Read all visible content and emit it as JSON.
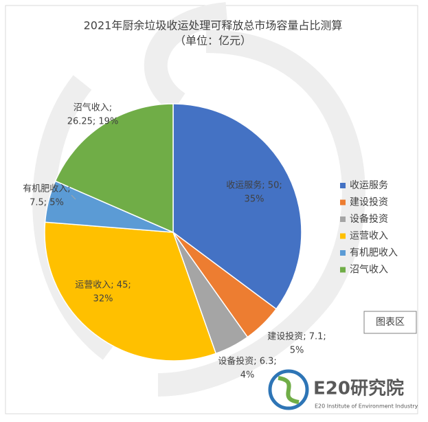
{
  "chart_data": {
    "type": "pie",
    "title": "2021年厨余垃圾收运处理可释放总市场容量占比测算",
    "subtitle": "（单位：亿元）",
    "categories": [
      "收运服务",
      "建设投资",
      "设备投资",
      "运营收入",
      "有机肥收入",
      "沼气收入"
    ],
    "values": [
      50,
      7.1,
      6.3,
      45,
      7.5,
      26.25
    ],
    "value_labels": [
      [
        "收运服务; 50;",
        "35%"
      ],
      [
        "建设投资; 7.1;",
        "5%"
      ],
      [
        "设备投资; 6.3;",
        "4%"
      ],
      [
        "运营收入; 45;",
        "32%"
      ],
      [
        "有机肥收入;",
        "7.5; 5%"
      ],
      [
        "沼气收入;",
        "26.25; 19%"
      ]
    ],
    "colors": [
      "#4472c4",
      "#ed7d31",
      "#a5a5a5",
      "#ffc000",
      "#5b9bd5",
      "#70ad47"
    ],
    "legend": "right"
  },
  "overlay": {
    "tooltip": "图表区",
    "logo": "E20研究院",
    "logo_subtitle": "E20 Institute of Environment Industry"
  }
}
